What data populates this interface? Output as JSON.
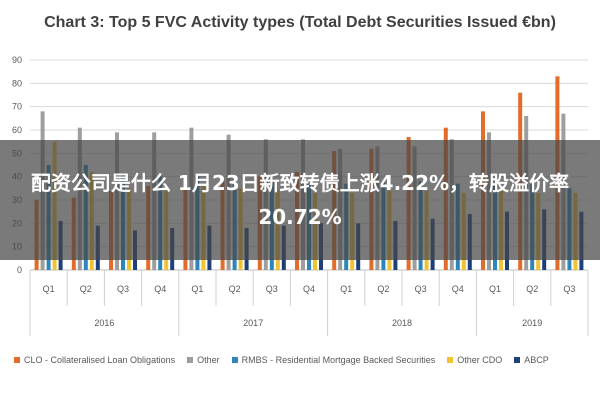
{
  "chart_data": {
    "type": "bar",
    "title": "Chart 3: Top 5 FVC Activity types (Total Debt Securities Issued €bn)",
    "categories": [
      "Q1",
      "Q2",
      "Q3",
      "Q4",
      "Q1",
      "Q2",
      "Q3",
      "Q4",
      "Q1",
      "Q2",
      "Q3",
      "Q4",
      "Q1",
      "Q2",
      "Q3"
    ],
    "years": [
      {
        "label": "2016",
        "count": 4
      },
      {
        "label": "2017",
        "count": 4
      },
      {
        "label": "2018",
        "count": 4
      },
      {
        "label": "2019",
        "count": 3
      }
    ],
    "ylim": [
      0,
      90
    ],
    "yticks": [
      "0",
      "10",
      "20",
      "30",
      "40",
      "50",
      "60",
      "70",
      "80",
      "90"
    ],
    "grid": true,
    "legend_position": "bottom",
    "series": [
      {
        "name": "CLO - Collateralised Loan Obligations",
        "color": "#e46c2a",
        "values": [
          30,
          31,
          34,
          36,
          36,
          38,
          40,
          42,
          51,
          52,
          57,
          61,
          68,
          76,
          83
        ]
      },
      {
        "name": "Other",
        "color": "#9e9e9e",
        "values": [
          68,
          61,
          59,
          59,
          61,
          58,
          56,
          56,
          52,
          53,
          53,
          56,
          59,
          66,
          67
        ]
      },
      {
        "name": "RMBS - Residential Mortgage Backed Securities",
        "color": "#2e86b8",
        "values": [
          45,
          45,
          41,
          40,
          40,
          39,
          39,
          37,
          37,
          38,
          38,
          37,
          36,
          37,
          35
        ]
      },
      {
        "name": "Other CDO",
        "color": "#f1c232",
        "values": [
          55,
          42,
          35,
          34,
          36,
          35,
          34,
          33,
          33,
          34,
          34,
          33,
          34,
          33,
          33
        ]
      },
      {
        "name": "ABCP",
        "color": "#1f3f7a",
        "values": [
          21,
          19,
          17,
          18,
          19,
          18,
          19,
          20,
          20,
          21,
          22,
          24,
          25,
          26,
          25
        ]
      }
    ]
  },
  "overlay": {
    "text": "配资公司是什么 1月23日新致转债上涨4.22%，转股溢价率20.72%"
  }
}
